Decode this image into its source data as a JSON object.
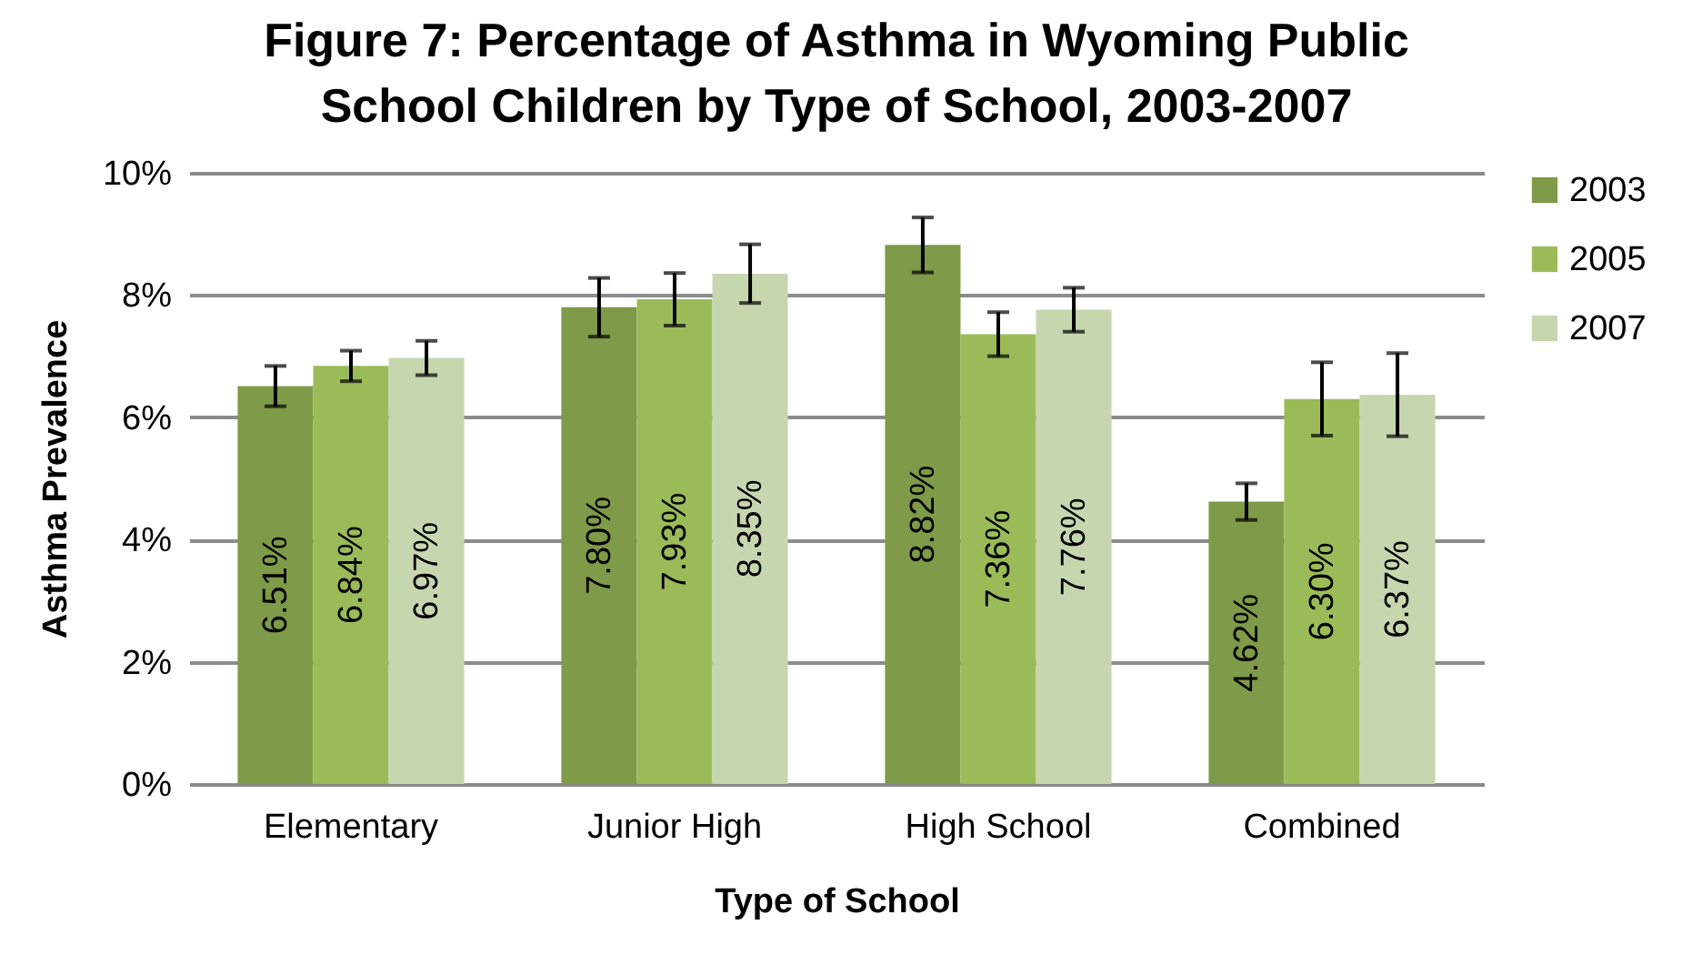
{
  "chart_data": {
    "type": "bar",
    "title": "Figure 7: Percentage of Asthma in Wyoming Public School Children by Type of School, 2003-2007",
    "xlabel": "Type of School",
    "ylabel": "Asthma Prevalence",
    "categories": [
      "Elementary",
      "Junior High",
      "High School",
      "Combined"
    ],
    "series": [
      {
        "name": "2003",
        "color": "#7f9a48",
        "values": [
          6.51,
          7.8,
          8.82,
          4.62
        ],
        "errors": [
          0.33,
          0.48,
          0.45,
          0.3
        ],
        "value_labels": [
          "6.51%",
          "7.80%",
          "8.82%",
          "4.62%"
        ]
      },
      {
        "name": "2005",
        "color": "#9bbb59",
        "values": [
          6.84,
          7.93,
          7.36,
          6.3
        ],
        "errors": [
          0.25,
          0.43,
          0.36,
          0.6
        ],
        "value_labels": [
          "6.84%",
          "7.93%",
          "7.36%",
          "6.30%"
        ]
      },
      {
        "name": "2007",
        "color": "#c6d7b0",
        "values": [
          6.97,
          8.35,
          7.76,
          6.37
        ],
        "errors": [
          0.28,
          0.48,
          0.36,
          0.68
        ],
        "value_labels": [
          "6.97%",
          "8.35%",
          "7.76%",
          "6.37%"
        ]
      }
    ],
    "ylim": [
      0,
      10
    ],
    "yticks": [
      {
        "value": 0,
        "label": "0%"
      },
      {
        "value": 2,
        "label": "2%"
      },
      {
        "value": 4,
        "label": "4%"
      },
      {
        "value": 6,
        "label": "6%"
      },
      {
        "value": 8,
        "label": "8%"
      },
      {
        "value": 10,
        "label": "10%"
      }
    ],
    "grid": "y",
    "legend": "right"
  }
}
